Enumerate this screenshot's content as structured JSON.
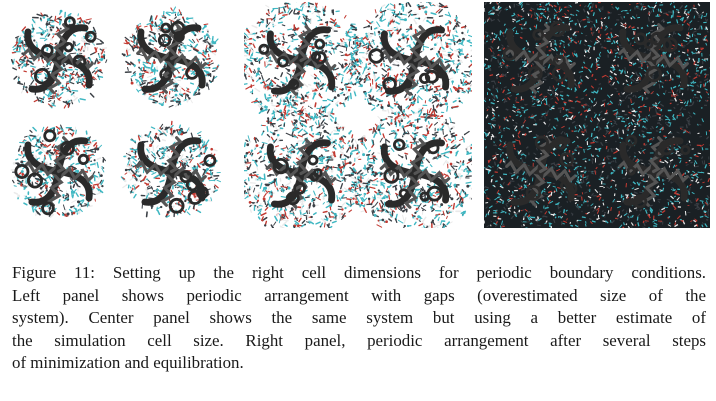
{
  "figure": {
    "panels": [
      {
        "name": "left",
        "arrangement": "periodic arrangement with gaps",
        "background": "#ffffff"
      },
      {
        "name": "center",
        "arrangement": "periodic arrangement, better cell size estimate",
        "background": "#ffffff"
      },
      {
        "name": "right",
        "arrangement": "after minimization and equilibration",
        "background": "#0f1418"
      }
    ],
    "colors": {
      "protein": "#2a2a2a",
      "solvent_cyan": "#3fb7c2",
      "solvent_red": "#c23a32",
      "solvent_white": "#eaeaea",
      "solvent_dark": "#3a3f45"
    },
    "caption_lines": [
      "Figure 11: Setting up the right cell dimensions for periodic boundary conditions.",
      "Left panel shows periodic arrangement with gaps (overestimated size of the",
      "system). Center panel shows the same system but using a better estimate of",
      "the simulation cell size. Right panel, periodic arrangement after several steps",
      "of minimization and equilibration."
    ]
  }
}
